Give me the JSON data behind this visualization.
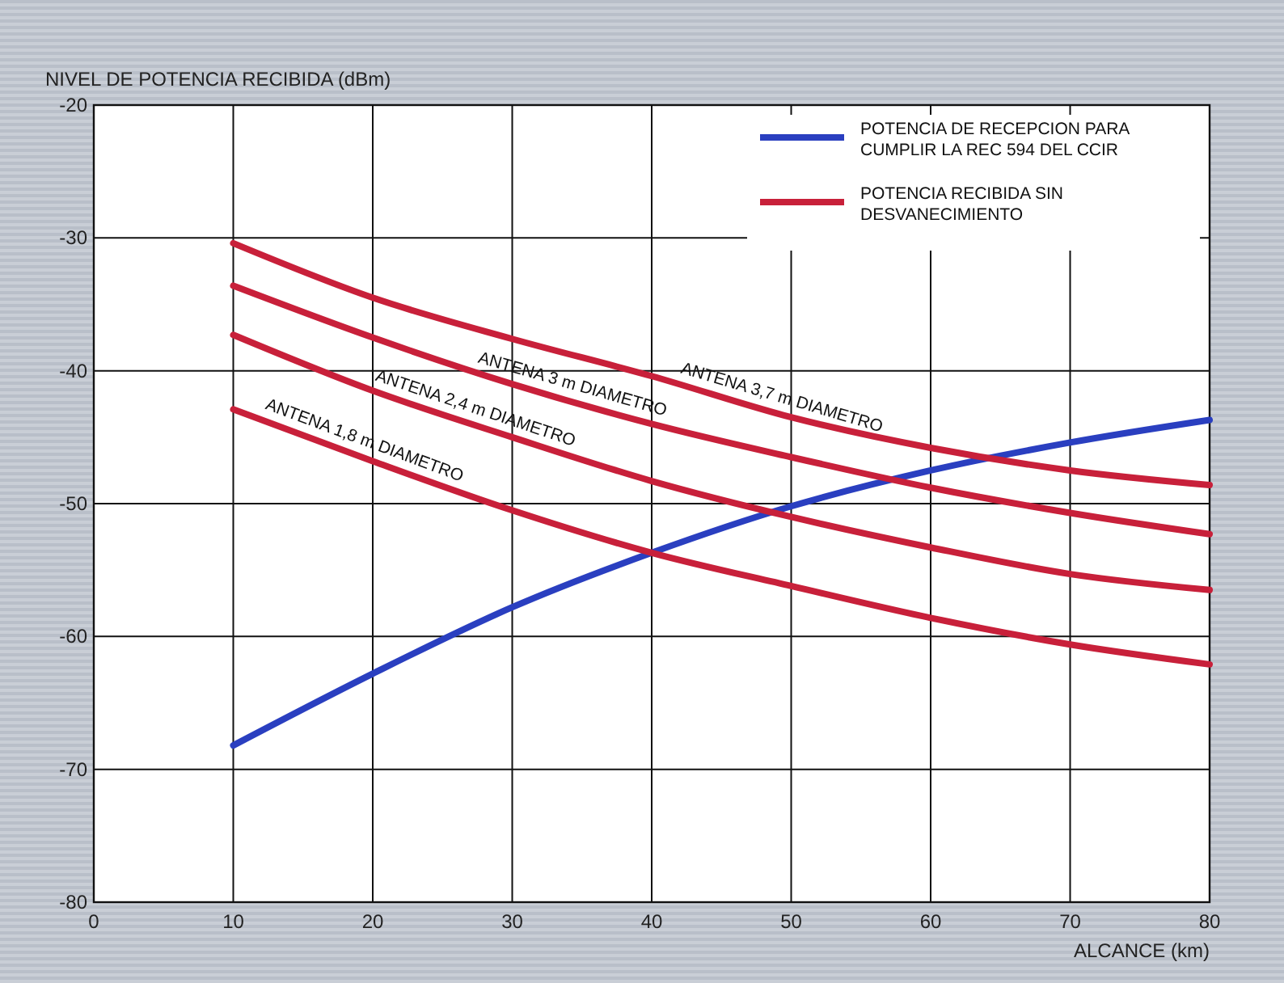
{
  "chart_data": {
    "type": "line",
    "xlabel": "ALCANCE (km)",
    "ylabel": "NIVEL DE POTENCIA RECIBIDA (dBm)",
    "x": [
      10,
      20,
      30,
      40,
      50,
      60,
      70,
      80
    ],
    "series": [
      {
        "name": "POTENCIA DE RECEPCION PARA CUMPLIR LA REC 594 DEL CCIR",
        "color": "#2a3fc0",
        "values": [
          -68.2,
          -62.8,
          -57.8,
          -53.7,
          -50.2,
          -47.5,
          -45.4,
          -43.7
        ]
      },
      {
        "name": "POTENCIA RECIBIDA SIN DESVANECIMIENTO",
        "color": "#c8203a",
        "values": [
          -30.4,
          -34.5,
          -37.6,
          -40.4,
          -43.5,
          -45.8,
          -47.5,
          -48.6
        ]
      },
      {
        "color": "#c8203a",
        "values": [
          -33.6,
          -37.5,
          -41,
          -44,
          -46.5,
          -48.8,
          -50.7,
          -52.3
        ]
      },
      {
        "color": "#c8203a",
        "values": [
          -37.3,
          -41.5,
          -45,
          -48.3,
          -51,
          -53.3,
          -55.3,
          -56.5
        ]
      },
      {
        "color": "#c8203a",
        "values": [
          -42.9,
          -46.8,
          -50.5,
          -53.7,
          -56.2,
          -58.6,
          -60.6,
          -62.1
        ]
      }
    ],
    "annotations": [
      {
        "text": "ANTENA 3,7 m DIAMETRO",
        "x": 49,
        "y": -43.2
      },
      {
        "text": "ANTENA 3 m DIAMETRO",
        "x": 34,
        "y": -42.2
      },
      {
        "text": "ANTENA 2,4 m DIAMETRO",
        "x": 27,
        "y": -44
      },
      {
        "text": "ANTENA 1,8 m DIAMETRO",
        "x": 19,
        "y": -46.4
      }
    ],
    "xlim": [
      0,
      80
    ],
    "xticks": [
      0,
      10,
      20,
      30,
      40,
      50,
      60,
      70,
      80
    ],
    "ylim": [
      -80,
      -20
    ],
    "yticks": [
      -80,
      -70,
      -60,
      -50,
      -40,
      -30,
      -20
    ],
    "grid": true,
    "legend": "top right",
    "marker": "none",
    "line_style": "solid"
  }
}
